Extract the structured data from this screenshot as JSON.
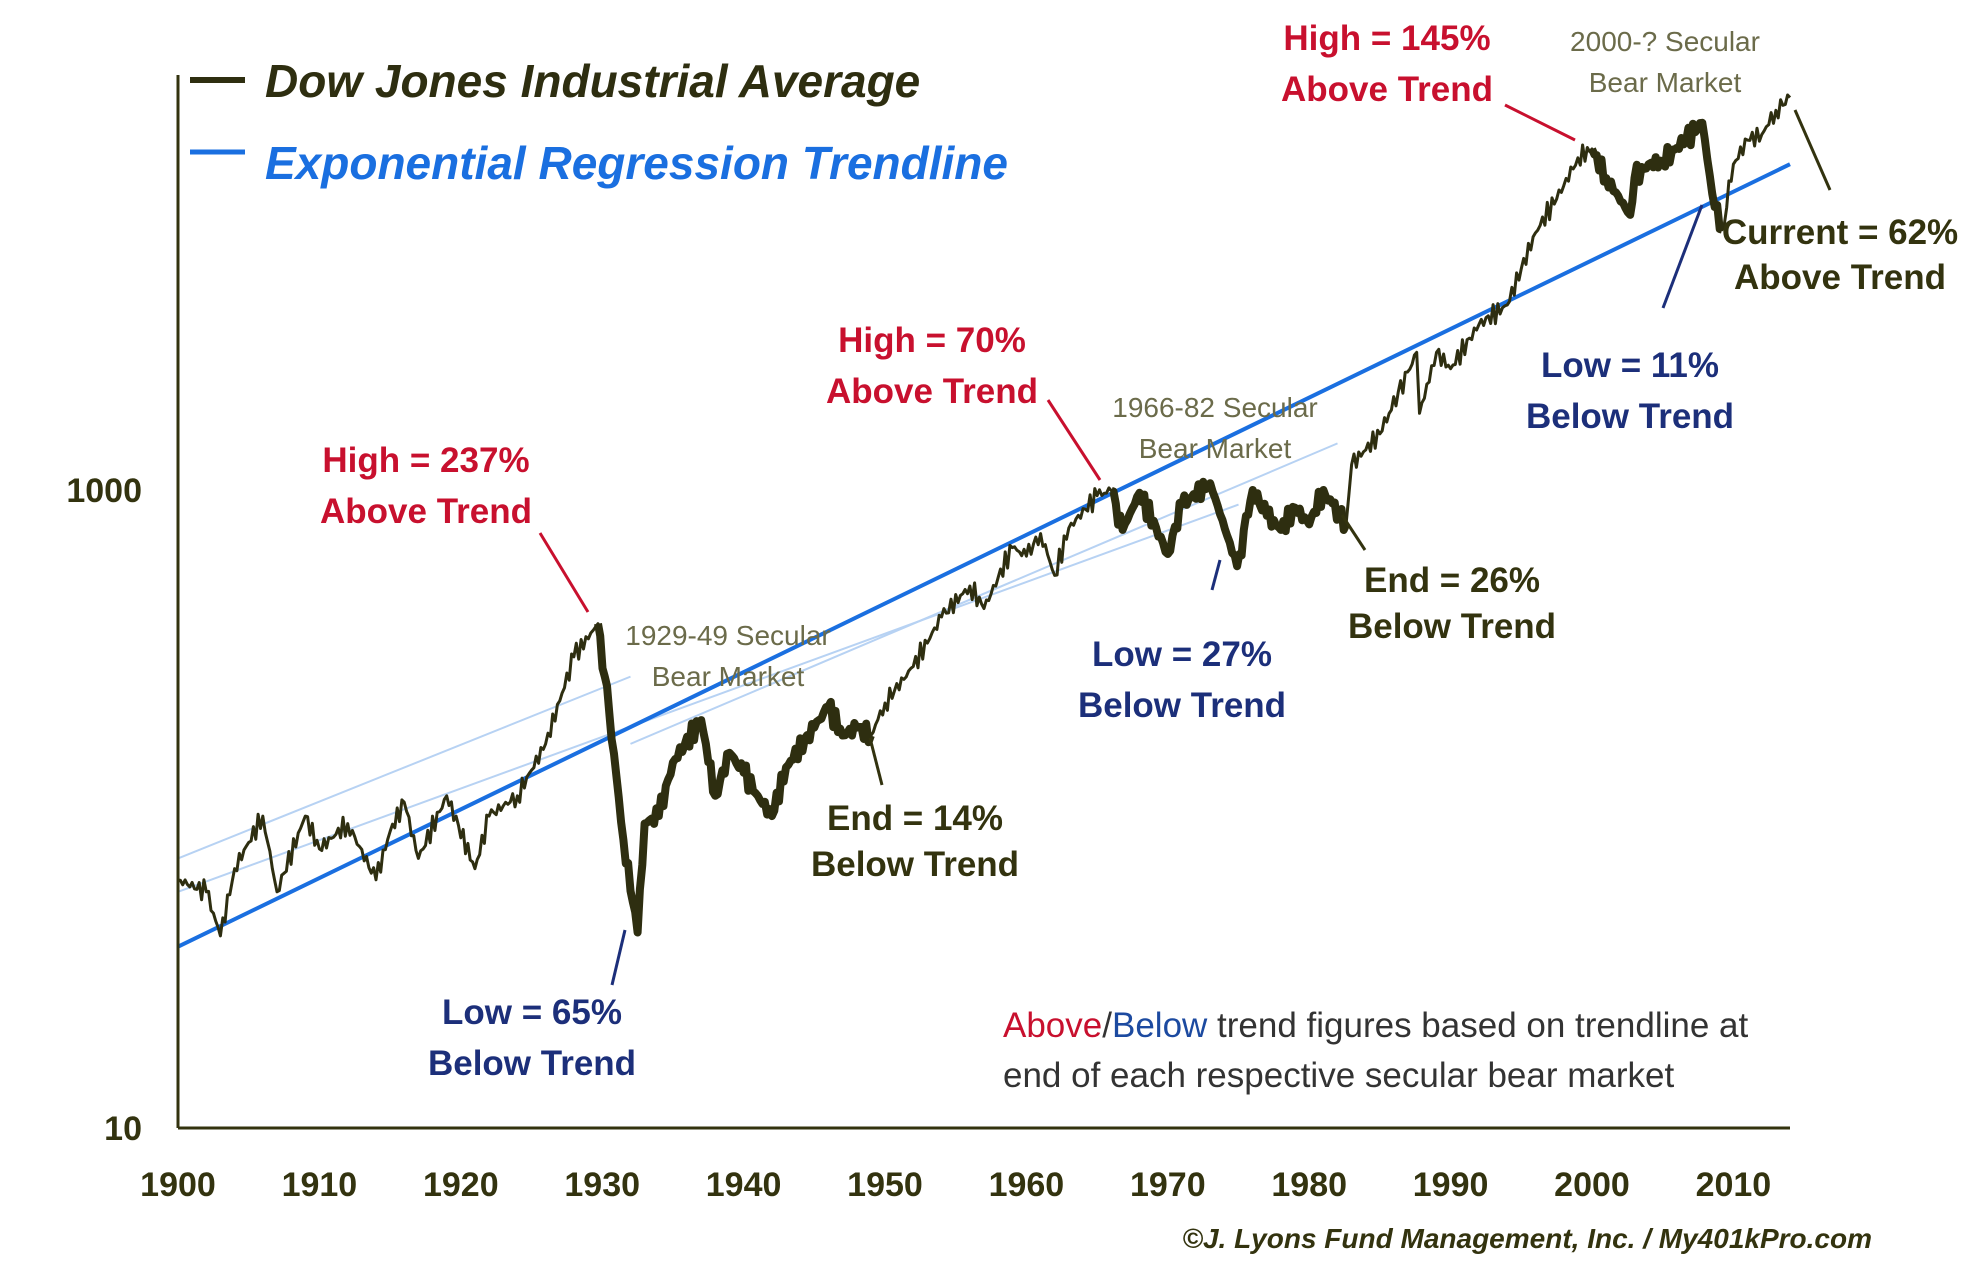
{
  "colors": {
    "dow": "#2e2e10",
    "trend": "#1a6fe0",
    "trend_faint": "#b7d2f3",
    "high": "#c8102e",
    "low": "#1c2f7a",
    "end": "#33330f",
    "note_above": "#c8102e",
    "note_below": "#1c4aa0"
  },
  "legend": {
    "dow_label": "Dow Jones Industrial Average",
    "trend_label": "Exponential Regression Trendline"
  },
  "annotations": {
    "high_1929_line1": "High = 237%",
    "high_1929_line2": "Above Trend",
    "low_1932_line1": "Low = 65%",
    "low_1932_line2": "Below Trend",
    "bear_1929_line1": "1929-49 Secular",
    "bear_1929_line2": "Bear Market",
    "end_1949_line1": "End = 14%",
    "end_1949_line2": "Below Trend",
    "high_1966_line1": "High = 70%",
    "high_1966_line2": "Above Trend",
    "bear_1966_line1": "1966-82 Secular",
    "bear_1966_line2": "Bear Market",
    "low_1974_line1": "Low = 27%",
    "low_1974_line2": "Below Trend",
    "end_1982_line1": "End = 26%",
    "end_1982_line2": "Below Trend",
    "high_2000_line1": "High = 145%",
    "high_2000_line2": "Above Trend",
    "bear_2000_line1": "2000-? Secular",
    "bear_2000_line2": "Bear Market",
    "low_2009_line1": "Low = 11%",
    "low_2009_line2": "Below Trend",
    "current_line1": "Current = 62%",
    "current_line2": "Above Trend"
  },
  "note": {
    "above": "Above",
    "slash": "/",
    "below": "Below",
    "rest_line1": " trend figures based on trendline at",
    "line2": "end of each respective secular bear market"
  },
  "credit": "©J. Lyons Fund Management, Inc. / My401kPro.com",
  "chart_data": {
    "type": "line",
    "y_scale": "log",
    "ylim": [
      10,
      25000
    ],
    "xlim": [
      1900,
      2014
    ],
    "x_ticks": [
      "1900",
      "1910",
      "1920",
      "1930",
      "1940",
      "1950",
      "1960",
      "1970",
      "1980",
      "1990",
      "2000",
      "2010"
    ],
    "y_ticks": [
      "10",
      "1000"
    ],
    "grid": false,
    "legend_placement": "top-left",
    "series": [
      {
        "name": "Dow Jones Industrial Average",
        "points": [
          [
            1900,
            60
          ],
          [
            1902,
            55
          ],
          [
            1903,
            40
          ],
          [
            1904,
            65
          ],
          [
            1906,
            95
          ],
          [
            1907,
            55
          ],
          [
            1909,
            95
          ],
          [
            1910,
            75
          ],
          [
            1912,
            90
          ],
          [
            1914,
            60
          ],
          [
            1915,
            85
          ],
          [
            1916,
            105
          ],
          [
            1917,
            70
          ],
          [
            1919,
            110
          ],
          [
            1921,
            65
          ],
          [
            1922,
            95
          ],
          [
            1924,
            110
          ],
          [
            1926,
            160
          ],
          [
            1928,
            300
          ],
          [
            1929.7,
            381
          ],
          [
            1930.5,
            200
          ],
          [
            1931.5,
            80
          ],
          [
            1932.5,
            41
          ],
          [
            1933,
            90
          ],
          [
            1934,
            95
          ],
          [
            1935,
            140
          ],
          [
            1937,
            190
          ],
          [
            1938,
            110
          ],
          [
            1939,
            150
          ],
          [
            1940,
            130
          ],
          [
            1941,
            110
          ],
          [
            1942,
            95
          ],
          [
            1943,
            135
          ],
          [
            1945,
            180
          ],
          [
            1946,
            210
          ],
          [
            1947,
            170
          ],
          [
            1948,
            180
          ],
          [
            1949,
            170
          ],
          [
            1950,
            215
          ],
          [
            1952,
            280
          ],
          [
            1954,
            400
          ],
          [
            1956,
            500
          ],
          [
            1957,
            425
          ],
          [
            1959,
            660
          ],
          [
            1960,
            620
          ],
          [
            1961,
            730
          ],
          [
            1962,
            540
          ],
          [
            1963,
            760
          ],
          [
            1965,
            960
          ],
          [
            1966,
            995
          ],
          [
            1966.8,
            750
          ],
          [
            1968,
            980
          ],
          [
            1970,
            630
          ],
          [
            1971,
            900
          ],
          [
            1973,
            1050
          ],
          [
            1974.9,
            577
          ],
          [
            1976,
            1000
          ],
          [
            1977,
            830
          ],
          [
            1978,
            750
          ],
          [
            1979,
            880
          ],
          [
            1980,
            780
          ],
          [
            1981,
            1000
          ],
          [
            1982.6,
            777
          ],
          [
            1983,
            1200
          ],
          [
            1985,
            1500
          ],
          [
            1987.6,
            2700
          ],
          [
            1987.8,
            1740
          ],
          [
            1989,
            2700
          ],
          [
            1990,
            2400
          ],
          [
            1992,
            3300
          ],
          [
            1994,
            3800
          ],
          [
            1996,
            6400
          ],
          [
            1998,
            9000
          ],
          [
            1999,
            11000
          ],
          [
            2000,
            11723
          ],
          [
            2001,
            9500
          ],
          [
            2002.7,
            7286
          ],
          [
            2003,
            9500
          ],
          [
            2004,
            10500
          ],
          [
            2005,
            10700
          ],
          [
            2007.8,
            14165
          ],
          [
            2008.5,
            8500
          ],
          [
            2009.2,
            6547
          ],
          [
            2010,
            10500
          ],
          [
            2011,
            12500
          ],
          [
            2012,
            13000
          ],
          [
            2013,
            15500
          ],
          [
            2014,
            17000
          ]
        ]
      },
      {
        "name": "Exponential Regression Trendline",
        "points": [
          [
            1900,
            37
          ],
          [
            2014,
            10500
          ]
        ]
      }
    ]
  }
}
